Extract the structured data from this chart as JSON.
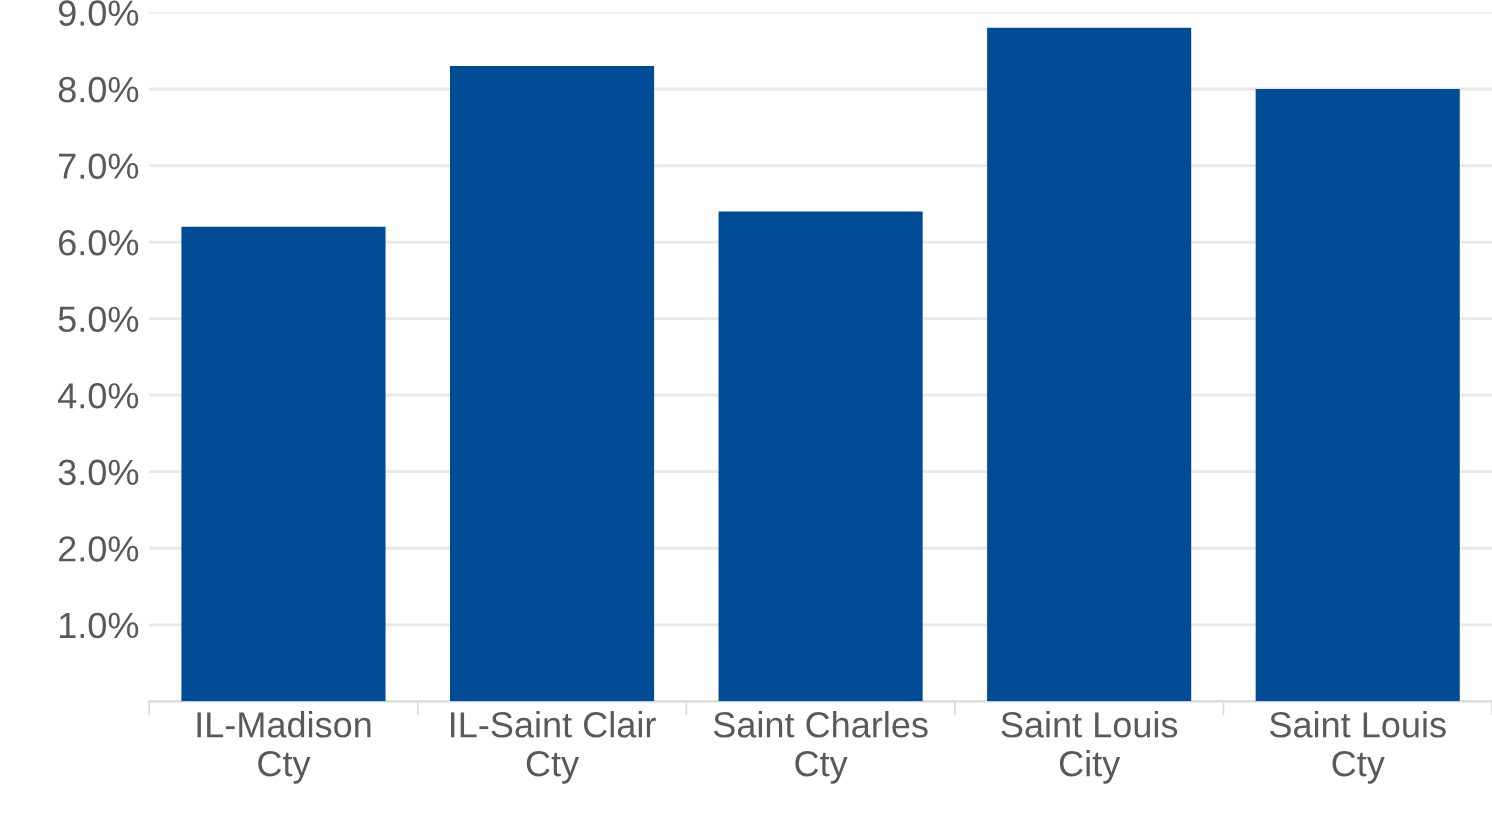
{
  "chart_data": {
    "type": "bar",
    "categories": [
      "IL-Madison\nCty",
      "IL-Saint Clair\nCty",
      "Saint Charles\nCty",
      "Saint Louis\nCity",
      "Saint Louis\nCty"
    ],
    "values": [
      6.2,
      8.3,
      6.4,
      8.8,
      8.0
    ],
    "color": "#004b96",
    "ylim": [
      0,
      9.0
    ],
    "yticks": [
      {
        "value": 1,
        "label": "1.0%"
      },
      {
        "value": 2,
        "label": "2.0%"
      },
      {
        "value": 3,
        "label": "3.0%"
      },
      {
        "value": 4,
        "label": "4.0%"
      },
      {
        "value": 5,
        "label": "5.0%"
      },
      {
        "value": 6,
        "label": "6.0%"
      },
      {
        "value": 7,
        "label": "7.0%"
      },
      {
        "value": 8,
        "label": "8.0%"
      },
      {
        "value": 9,
        "label": "9.0%"
      }
    ],
    "grid": "y",
    "legend": false
  }
}
